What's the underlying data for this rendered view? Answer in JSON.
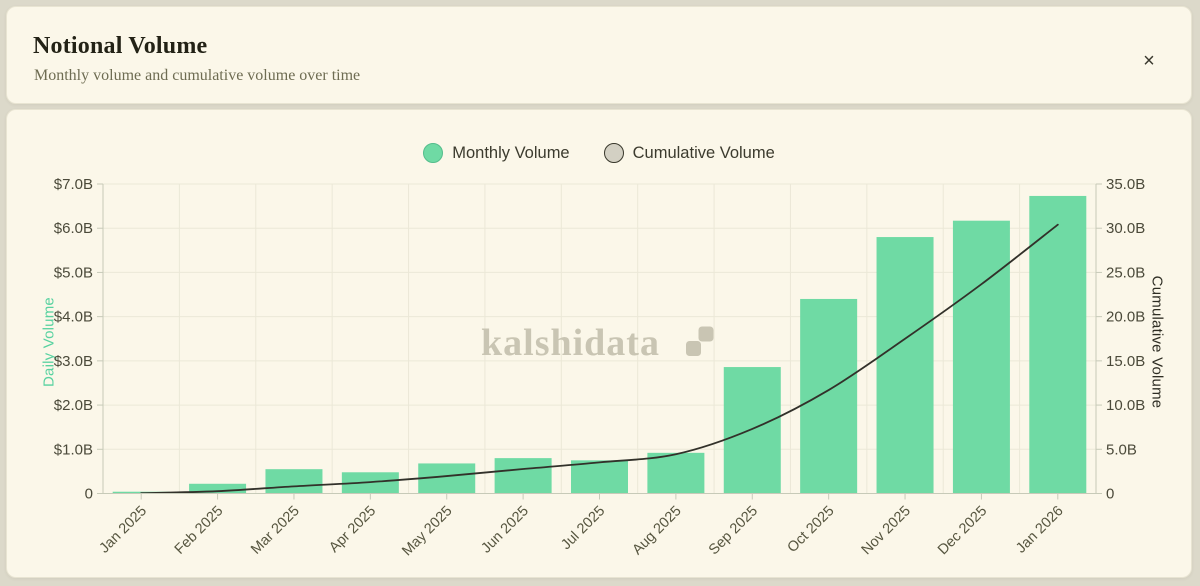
{
  "header": {
    "title": "Notional Volume",
    "subtitle": "Monthly volume and cumulative volume over time",
    "close_label": "×"
  },
  "legend": [
    {
      "label": "Monthly Volume",
      "fill": "#6fdaa4",
      "border": "#54bd8c"
    },
    {
      "label": "Cumulative Volume",
      "fill": "#d3d0c3",
      "border": "#39382c"
    }
  ],
  "watermark": {
    "text": "kalshidata",
    "logo": "kalshi-steps-logo"
  },
  "colors": {
    "bar": "#6fdaa4",
    "line": "#32312a",
    "grid": "#ebe8d7",
    "axis": "#c7cab8",
    "tick_text": "#4b4a3a",
    "x_tick_text": "#56553f",
    "watermark": "#c9c5b3",
    "left_axis_title": "#58d2a0",
    "right_axis_title": "#2e2d23"
  },
  "chart_data": {
    "type": "combo",
    "title": "Notional Volume",
    "subtitle": "Monthly volume and cumulative volume over time",
    "categories": [
      "Jan 2025",
      "Feb 2025",
      "Mar 2025",
      "Apr 2025",
      "May 2025",
      "Jun 2025",
      "Jul 2025",
      "Aug 2025",
      "Sep 2025",
      "Oct 2025",
      "Nov 2025",
      "Dec 2025",
      "Jan 2026"
    ],
    "series": [
      {
        "name": "Monthly Volume",
        "type": "bar",
        "y_axis": "left",
        "color": "#6fdaa4",
        "unit": "USD billions",
        "values": [
          0.04,
          0.22,
          0.55,
          0.48,
          0.68,
          0.8,
          0.75,
          0.92,
          2.86,
          4.4,
          5.8,
          6.17,
          6.73
        ]
      },
      {
        "name": "Cumulative Volume",
        "type": "line",
        "y_axis": "right",
        "color": "#32312a",
        "unit": "USD billions",
        "values": [
          0.04,
          0.26,
          0.81,
          1.29,
          1.97,
          2.77,
          3.52,
          4.44,
          7.3,
          11.7,
          17.5,
          23.67,
          30.4
        ]
      }
    ],
    "left_axis": {
      "label": "Daily Volume",
      "min": 0,
      "max": 7,
      "tick_step": 1,
      "tick_labels": [
        "$7.0B",
        "$6.0B",
        "$5.0B",
        "$4.0B",
        "$3.0B",
        "$2.0B",
        "$1.0B",
        "0"
      ]
    },
    "right_axis": {
      "label": "Cumulative Volume",
      "min": 0,
      "max": 35,
      "tick_step": 5,
      "tick_labels": [
        "35.0B",
        "30.0B",
        "25.0B",
        "20.0B",
        "15.0B",
        "10.0B",
        "5.0B",
        "0"
      ]
    },
    "grid": true,
    "legend_position": "top"
  }
}
